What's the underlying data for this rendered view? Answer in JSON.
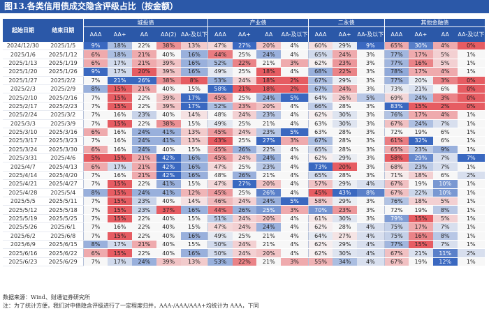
{
  "title": "图13.各类信用债成交隐含评级占比（按金额）",
  "headers": {
    "start_date": "起始日期",
    "end_date": "结束日期",
    "groups": [
      "城投债",
      "产业债",
      "二永债",
      "其他金融债"
    ],
    "city": [
      "AAA",
      "AA+",
      "AA",
      "AA(2)",
      "AA-及以下"
    ],
    "industry": [
      "AAA",
      "AA+",
      "AA",
      "AA-及以下"
    ],
    "bank": [
      "AAA",
      "AA+",
      "AA-及以下"
    ],
    "other": [
      "AAA",
      "AA+",
      "AA",
      "AA-及以下"
    ]
  },
  "rows": [
    {
      "start": "2024/12/30",
      "end": "2025/1/5",
      "v": [
        "9%",
        "18%",
        "22%",
        "38%",
        "13%",
        "47%",
        "27%",
        "20%",
        "4%",
        "60%",
        "29%",
        "9%",
        "65%",
        "30%",
        "4%",
        "0%"
      ]
    },
    {
      "start": "2025/1/6",
      "end": "2025/1/12",
      "v": [
        "6%",
        "18%",
        "21%",
        "40%",
        "16%",
        "44%",
        "25%",
        "24%",
        "4%",
        "65%",
        "24%",
        "3%",
        "77%",
        "17%",
        "5%",
        "1%"
      ]
    },
    {
      "start": "2025/1/13",
      "end": "2025/1/19",
      "v": [
        "6%",
        "17%",
        "21%",
        "39%",
        "16%",
        "52%",
        "22%",
        "21%",
        "3%",
        "62%",
        "23%",
        "3%",
        "77%",
        "16%",
        "5%",
        "1%"
      ]
    },
    {
      "start": "2025/1/20",
      "end": "2025/1/26",
      "v": [
        "9%",
        "17%",
        "20%",
        "39%",
        "16%",
        "49%",
        "25%",
        "18%",
        "4%",
        "68%",
        "22%",
        "3%",
        "78%",
        "17%",
        "4%",
        "1%"
      ]
    },
    {
      "start": "2025/1/27",
      "end": "2025/2/2",
      "v": [
        "7%",
        "21%",
        "26%",
        "38%",
        "8%",
        "53%",
        "24%",
        "18%",
        "2%",
        "67%",
        "29%",
        "3%",
        "77%",
        "20%",
        "3%",
        "0%"
      ]
    },
    {
      "start": "2025/2/3",
      "end": "2025/2/9",
      "v": [
        "8%",
        "15%",
        "21%",
        "40%",
        "15%",
        "58%",
        "21%",
        "18%",
        "2%",
        "67%",
        "24%",
        "3%",
        "73%",
        "21%",
        "6%",
        "0%"
      ]
    },
    {
      "start": "2025/2/10",
      "end": "2025/2/16",
      "v": [
        "7%",
        "15%",
        "22%",
        "39%",
        "17%",
        "45%",
        "25%",
        "24%",
        "5%",
        "64%",
        "26%",
        "5%",
        "69%",
        "24%",
        "3%",
        "0%"
      ]
    },
    {
      "start": "2025/2/17",
      "end": "2025/2/23",
      "v": [
        "7%",
        "15%",
        "22%",
        "39%",
        "17%",
        "52%",
        "23%",
        "20%",
        "4%",
        "66%",
        "28%",
        "3%",
        "83%",
        "15%",
        "2%",
        "0%"
      ]
    },
    {
      "start": "2025/2/24",
      "end": "2025/3/2",
      "v": [
        "7%",
        "16%",
        "23%",
        "40%",
        "14%",
        "48%",
        "24%",
        "23%",
        "4%",
        "62%",
        "30%",
        "3%",
        "76%",
        "17%",
        "4%",
        "1%"
      ]
    },
    {
      "start": "2025/3/3",
      "end": "2025/3/9",
      "v": [
        "7%",
        "15%",
        "22%",
        "38%",
        "15%",
        "49%",
        "25%",
        "21%",
        "4%",
        "63%",
        "30%",
        "3%",
        "67%",
        "24%",
        "7%",
        "1%"
      ]
    },
    {
      "start": "2025/3/10",
      "end": "2025/3/16",
      "v": [
        "6%",
        "16%",
        "24%",
        "41%",
        "13%",
        "45%",
        "24%",
        "23%",
        "5%",
        "63%",
        "28%",
        "3%",
        "72%",
        "19%",
        "6%",
        "1%"
      ]
    },
    {
      "start": "2025/3/17",
      "end": "2025/3/23",
      "v": [
        "7%",
        "16%",
        "24%",
        "41%",
        "13%",
        "43%",
        "25%",
        "27%",
        "3%",
        "67%",
        "28%",
        "3%",
        "61%",
        "32%",
        "6%",
        "1%"
      ]
    },
    {
      "start": "2025/3/24",
      "end": "2025/3/30",
      "v": [
        "6%",
        "16%",
        "24%",
        "40%",
        "15%",
        "45%",
        "26%",
        "22%",
        "4%",
        "65%",
        "28%",
        "3%",
        "65%",
        "23%",
        "9%",
        "1%"
      ]
    },
    {
      "start": "2025/3/31",
      "end": "2025/4/6",
      "v": [
        "5%",
        "15%",
        "21%",
        "42%",
        "16%",
        "45%",
        "24%",
        "24%",
        "4%",
        "62%",
        "29%",
        "3%",
        "58%",
        "29%",
        "7%",
        "7%"
      ]
    },
    {
      "start": "2025/4/7",
      "end": "2025/4/13",
      "v": [
        "6%",
        "17%",
        "21%",
        "42%",
        "16%",
        "47%",
        "25%",
        "23%",
        "4%",
        "73%",
        "20%",
        "3%",
        "68%",
        "23%",
        "7%",
        "1%"
      ]
    },
    {
      "start": "2025/4/14",
      "end": "2025/4/20",
      "v": [
        "7%",
        "16%",
        "21%",
        "42%",
        "16%",
        "48%",
        "26%",
        "21%",
        "4%",
        "65%",
        "28%",
        "3%",
        "71%",
        "18%",
        "6%",
        "2%"
      ]
    },
    {
      "start": "2025/4/21",
      "end": "2025/4/27",
      "v": [
        "7%",
        "15%",
        "22%",
        "41%",
        "15%",
        "47%",
        "27%",
        "20%",
        "4%",
        "57%",
        "29%",
        "4%",
        "67%",
        "19%",
        "10%",
        "1%"
      ]
    },
    {
      "start": "2025/4/28",
      "end": "2025/5/4",
      "v": [
        "8%",
        "15%",
        "24%",
        "41%",
        "12%",
        "45%",
        "25%",
        "26%",
        "4%",
        "45%",
        "43%",
        "8%",
        "67%",
        "22%",
        "10%",
        "1%"
      ]
    },
    {
      "start": "2025/5/5",
      "end": "2025/5/11",
      "v": [
        "7%",
        "15%",
        "23%",
        "40%",
        "14%",
        "46%",
        "24%",
        "24%",
        "5%",
        "58%",
        "29%",
        "3%",
        "76%",
        "18%",
        "5%",
        "1%"
      ]
    },
    {
      "start": "2025/5/12",
      "end": "2025/5/18",
      "v": [
        "7%",
        "15%",
        "23%",
        "37%",
        "16%",
        "44%",
        "26%",
        "25%",
        "3%",
        "70%",
        "23%",
        "3%",
        "72%",
        "19%",
        "8%",
        "1%"
      ]
    },
    {
      "start": "2025/5/19",
      "end": "2025/5/25",
      "v": [
        "7%",
        "15%",
        "22%",
        "40%",
        "15%",
        "51%",
        "24%",
        "20%",
        "4%",
        "61%",
        "30%",
        "3%",
        "79%",
        "15%",
        "5%",
        "1%"
      ]
    },
    {
      "start": "2025/5/26",
      "end": "2025/6/1",
      "v": [
        "7%",
        "16%",
        "22%",
        "40%",
        "15%",
        "47%",
        "24%",
        "24%",
        "4%",
        "62%",
        "28%",
        "4%",
        "75%",
        "17%",
        "7%",
        "1%"
      ]
    },
    {
      "start": "2025/6/2",
      "end": "2025/6/8",
      "v": [
        "7%",
        "15%",
        "22%",
        "40%",
        "16%",
        "49%",
        "25%",
        "21%",
        "4%",
        "64%",
        "27%",
        "4%",
        "75%",
        "16%",
        "8%",
        "1%"
      ]
    },
    {
      "start": "2025/6/9",
      "end": "2025/6/15",
      "v": [
        "8%",
        "17%",
        "21%",
        "40%",
        "15%",
        "50%",
        "24%",
        "21%",
        "4%",
        "62%",
        "29%",
        "4%",
        "77%",
        "15%",
        "7%",
        "1%"
      ]
    },
    {
      "start": "2025/6/16",
      "end": "2025/6/22",
      "v": [
        "6%",
        "15%",
        "22%",
        "40%",
        "16%",
        "50%",
        "24%",
        "20%",
        "4%",
        "62%",
        "30%",
        "4%",
        "67%",
        "21%",
        "11%",
        "2%"
      ]
    },
    {
      "start": "2025/6/23",
      "end": "2025/6/29",
      "v": [
        "7%",
        "17%",
        "24%",
        "39%",
        "13%",
        "53%",
        "22%",
        "21%",
        "3%",
        "55%",
        "34%",
        "4%",
        "67%",
        "19%",
        "12%",
        "1%"
      ]
    }
  ],
  "source": "数据来源：Wind、财通证券研究所",
  "note": "注：为了统计方便，我们对中债隐含评级进行了一定程度归并，AAA-/AAA/AAA+均统计为 AAA，下同",
  "colors": {
    "header_bg": "#2b58a8",
    "high": "#3a68c0",
    "mid": "#f7f7f7",
    "low": "#e65c62"
  }
}
